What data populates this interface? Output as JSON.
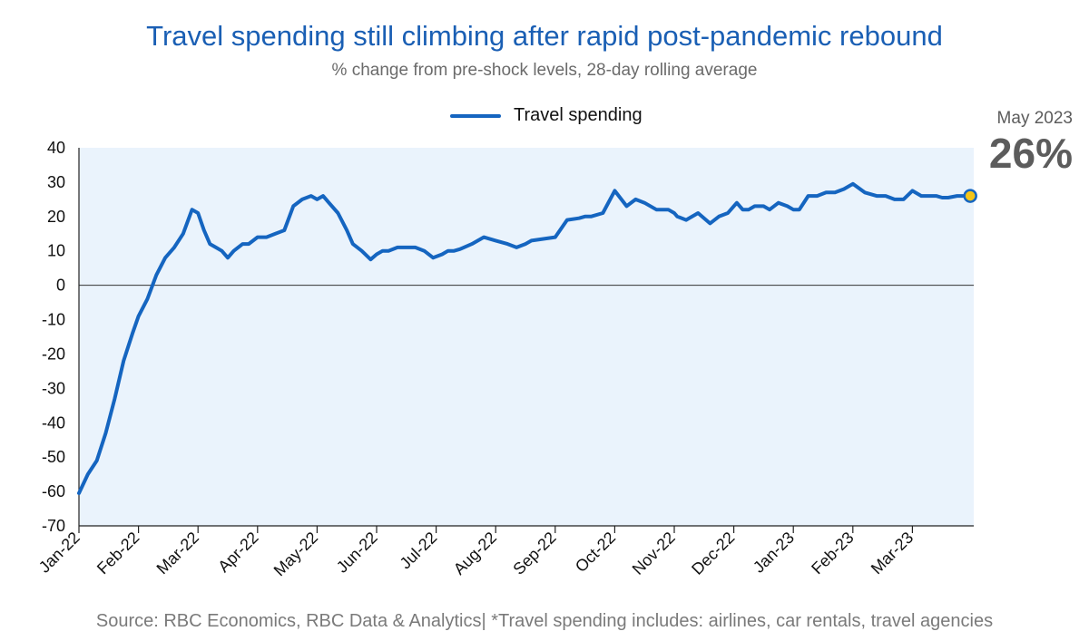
{
  "header": {
    "title": "Travel spending still climbing after rapid post-pandemic rebound",
    "subtitle": "% change from pre-shock levels, 28-day rolling average"
  },
  "legend": {
    "label": "Travel spending"
  },
  "callout": {
    "date": "May 2023",
    "value": "26%"
  },
  "source": "Source: RBC Economics, RBC Data & Analytics| *Travel spending includes: airlines, car rentals, travel agencies",
  "colors": {
    "line": "#1565c0",
    "plot_bg": "#eaf3fc",
    "marker": "#f5c518",
    "title": "#1a5fb4"
  },
  "chart_data": {
    "type": "line",
    "title": "Travel spending still climbing after rapid post-pandemic rebound",
    "subtitle": "% change from pre-shock levels, 28-day rolling average",
    "ylim": [
      -70,
      40
    ],
    "yticks": [
      "40",
      "30",
      "20",
      "10",
      "0",
      "-10",
      "-20",
      "-30",
      "-40",
      "-50",
      "-60",
      "-70"
    ],
    "xticks": [
      "Jan-22",
      "Feb-22",
      "Mar-22",
      "Apr-22",
      "May-22",
      "Jun-22",
      "Jul-22",
      "Aug-22",
      "Sep-22",
      "Oct-22",
      "Nov-22",
      "Dec-22",
      "Jan-23",
      "Feb-23",
      "Mar-23"
    ],
    "grid": false,
    "legend_position": "top",
    "series": [
      {
        "name": "Travel spending",
        "x": [
          0,
          0.15,
          0.3,
          0.45,
          0.6,
          0.75,
          0.9,
          1.0,
          1.15,
          1.3,
          1.45,
          1.6,
          1.75,
          1.9,
          2.0,
          2.1,
          2.2,
          2.3,
          2.4,
          2.5,
          2.6,
          2.75,
          2.85,
          3.0,
          3.15,
          3.3,
          3.45,
          3.6,
          3.75,
          3.9,
          4.0,
          4.1,
          4.2,
          4.35,
          4.5,
          4.6,
          4.75,
          4.9,
          5.0,
          5.1,
          5.2,
          5.35,
          5.5,
          5.65,
          5.8,
          5.95,
          6.1,
          6.2,
          6.3,
          6.4,
          6.6,
          6.8,
          7.0,
          7.2,
          7.35,
          7.5,
          7.6,
          7.8,
          8.0,
          8.2,
          8.4,
          8.5,
          8.6,
          8.8,
          9.0,
          9.2,
          9.35,
          9.5,
          9.7,
          9.9,
          10.0,
          10.05,
          10.2,
          10.4,
          10.6,
          10.75,
          10.9,
          11.0,
          11.05,
          11.15,
          11.25,
          11.35,
          11.5,
          11.6,
          11.75,
          11.9,
          12.0,
          12.1,
          12.25,
          12.4,
          12.55,
          12.7,
          12.85,
          13.0,
          13.2,
          13.4,
          13.55,
          13.7,
          13.85,
          14.0,
          14.15,
          14.3,
          14.4,
          14.5,
          14.6,
          14.75,
          14.85
        ],
        "values": [
          -60.5,
          -55,
          -51,
          -43,
          -33,
          -22,
          -14,
          -9,
          -4,
          3,
          8,
          11,
          15,
          22,
          21,
          16,
          12,
          11,
          10,
          8,
          10,
          12,
          12,
          14,
          14,
          15,
          16,
          23,
          25,
          26,
          25,
          26,
          24,
          21,
          16,
          12,
          10,
          7.5,
          9,
          10,
          10,
          11,
          11,
          11,
          10,
          8,
          9,
          10,
          10,
          10.5,
          12,
          14,
          13,
          12,
          11,
          12,
          13,
          13.5,
          14,
          19,
          19.5,
          20,
          20,
          21,
          27.5,
          23,
          25,
          24,
          22,
          22,
          21,
          20,
          19,
          21,
          18,
          20,
          21,
          23,
          24,
          22,
          22,
          23,
          23,
          22,
          24,
          23,
          22,
          22,
          26,
          26,
          27,
          27,
          28,
          29.5,
          27,
          26,
          26,
          25,
          25,
          27.5,
          26,
          26,
          26,
          25.5,
          25.5,
          26,
          26
        ],
        "last_point": {
          "label": "May 2023",
          "value": 26
        }
      }
    ]
  }
}
